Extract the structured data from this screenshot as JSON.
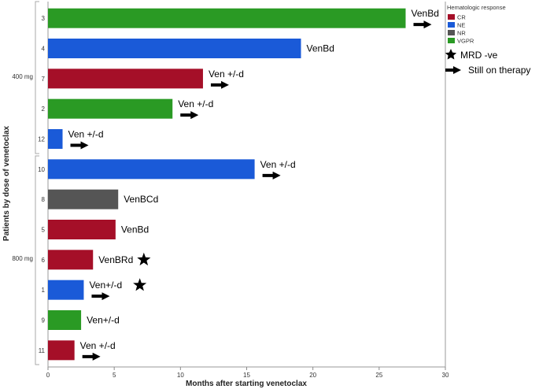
{
  "chart_data": {
    "type": "bar",
    "orientation": "horizontal",
    "xlabel": "Months after starting venetoclax",
    "ylabel": "Patients by dose of venetoclax",
    "xlim": [
      0,
      30
    ],
    "x_ticks": [
      0,
      5,
      10,
      15,
      20,
      25,
      30
    ],
    "grid": false,
    "legend": {
      "title": "Hematologic response",
      "placement": "top-right",
      "entries": [
        {
          "label": "CR",
          "color": "#a50f28"
        },
        {
          "label": "NE",
          "color": "#1a5ad8"
        },
        {
          "label": "NR",
          "color": "#555555"
        },
        {
          "label": "VGPR",
          "color": "#2a9a24"
        }
      ]
    },
    "key": {
      "star_label": "MRD -ve",
      "arrow_label": "Still on therapy"
    },
    "groups": [
      {
        "label": "400 mg",
        "patients": [
          {
            "id": "3",
            "months": 27.0,
            "response": "VGPR",
            "regimen": "VenBd",
            "still_on_therapy": true,
            "mrd_negative": false
          },
          {
            "id": "4",
            "months": 19.1,
            "response": "NE",
            "regimen": "VenBd",
            "still_on_therapy": false,
            "mrd_negative": false
          },
          {
            "id": "7",
            "months": 11.7,
            "response": "CR",
            "regimen": "Ven +/-d",
            "still_on_therapy": true,
            "mrd_negative": false
          },
          {
            "id": "2",
            "months": 9.4,
            "response": "VGPR",
            "regimen": "Ven +/-d",
            "still_on_therapy": true,
            "mrd_negative": false
          },
          {
            "id": "12",
            "months": 1.1,
            "response": "NE",
            "regimen": "Ven +/-d",
            "still_on_therapy": true,
            "mrd_negative": false
          }
        ]
      },
      {
        "label": "800 mg",
        "patients": [
          {
            "id": "10",
            "months": 15.6,
            "response": "NE",
            "regimen": "Ven +/-d",
            "still_on_therapy": true,
            "mrd_negative": false
          },
          {
            "id": "8",
            "months": 5.3,
            "response": "NR",
            "regimen": "VenBCd",
            "still_on_therapy": false,
            "mrd_negative": false
          },
          {
            "id": "5",
            "months": 5.1,
            "response": "CR",
            "regimen": "VenBd",
            "still_on_therapy": false,
            "mrd_negative": false
          },
          {
            "id": "6",
            "months": 3.4,
            "response": "CR",
            "regimen": "VenBRd",
            "still_on_therapy": false,
            "mrd_negative": true
          },
          {
            "id": "1",
            "months": 2.7,
            "response": "NE",
            "regimen": "Ven+/-d",
            "still_on_therapy": true,
            "mrd_negative": true
          },
          {
            "id": "9",
            "months": 2.5,
            "response": "VGPR",
            "regimen": "Ven+/-d",
            "still_on_therapy": false,
            "mrd_negative": false
          },
          {
            "id": "11",
            "months": 2.0,
            "response": "CR",
            "regimen": "Ven +/-d",
            "still_on_therapy": true,
            "mrd_negative": false
          }
        ]
      }
    ]
  }
}
